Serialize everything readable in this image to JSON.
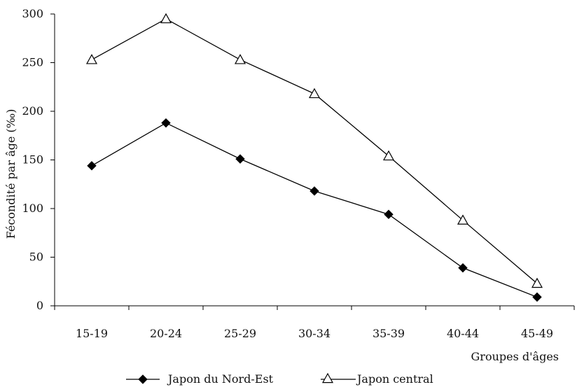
{
  "chart_data": {
    "type": "line",
    "title": "",
    "xlabel": "Groupes d'âges",
    "ylabel": "Fécondité par âge (‰)",
    "categories": [
      "15-19",
      "20-24",
      "25-29",
      "30-34",
      "35-39",
      "40-44",
      "45-49"
    ],
    "ylim": [
      0,
      300
    ],
    "yticks": [
      0,
      50,
      100,
      150,
      200,
      250,
      300
    ],
    "grid": false,
    "legend_position": "bottom",
    "series": [
      {
        "name": "Japon du Nord-Est",
        "marker": "filled-diamond",
        "color": "#000000",
        "values": [
          144,
          188,
          151,
          118,
          94,
          39,
          9
        ]
      },
      {
        "name": "Japon central",
        "marker": "open-triangle",
        "color": "#000000",
        "values": [
          253,
          295,
          253,
          218,
          154,
          88,
          23
        ]
      }
    ]
  }
}
